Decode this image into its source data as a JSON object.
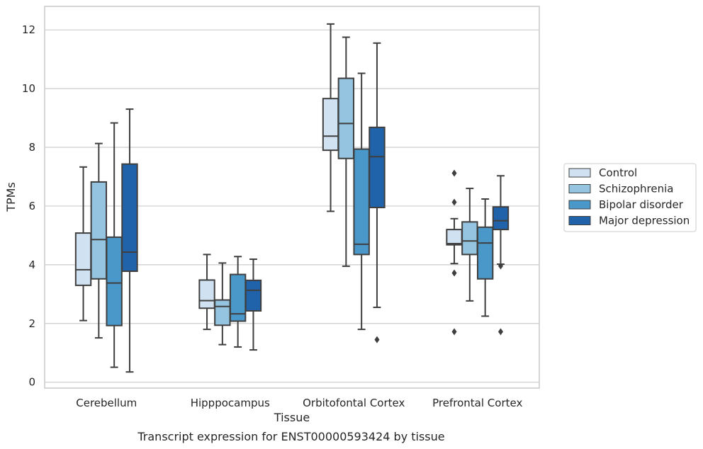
{
  "chart_data": {
    "type": "box",
    "caption": "Transcript expression for ENST00000593424 by tissue",
    "xlabel": "Tissue",
    "ylabel": "TPMs",
    "ylim": [
      -0.2,
      12.8
    ],
    "yticks": [
      0,
      2,
      4,
      6,
      8,
      10,
      12
    ],
    "grid": "horizontal",
    "legend_position": "right",
    "categories": [
      "Cerebellum",
      "Hipppocampus",
      "Orbitofontal Cortex",
      "Prefrontal Cortex"
    ],
    "series": [
      {
        "name": "Control",
        "color": "#d0e1f2",
        "boxes": [
          {
            "whisker_low": 2.1,
            "q1": 3.3,
            "median": 3.83,
            "q3": 5.08,
            "whisker_high": 7.33,
            "outliers": []
          },
          {
            "whisker_low": 1.8,
            "q1": 2.52,
            "median": 2.78,
            "q3": 3.48,
            "whisker_high": 4.35,
            "outliers": []
          },
          {
            "whisker_low": 5.82,
            "q1": 7.9,
            "median": 8.38,
            "q3": 9.66,
            "whisker_high": 12.2,
            "outliers": []
          },
          {
            "whisker_low": 4.04,
            "q1": 4.68,
            "median": 4.72,
            "q3": 5.2,
            "whisker_high": 5.57,
            "outliers": [
              7.12,
              6.13,
              3.72,
              1.72
            ]
          }
        ]
      },
      {
        "name": "Schizophrenia",
        "color": "#94c4df",
        "boxes": [
          {
            "whisker_low": 1.51,
            "q1": 3.52,
            "median": 4.86,
            "q3": 6.82,
            "whisker_high": 8.13,
            "outliers": []
          },
          {
            "whisker_low": 1.28,
            "q1": 1.94,
            "median": 2.58,
            "q3": 2.8,
            "whisker_high": 4.06,
            "outliers": []
          },
          {
            "whisker_low": 3.95,
            "q1": 7.62,
            "median": 8.81,
            "q3": 10.35,
            "whisker_high": 11.75,
            "outliers": []
          },
          {
            "whisker_low": 2.77,
            "q1": 4.35,
            "median": 4.81,
            "q3": 5.46,
            "whisker_high": 6.6,
            "outliers": []
          }
        ]
      },
      {
        "name": "Bipolar disorder",
        "color": "#4a98c9",
        "boxes": [
          {
            "whisker_low": 0.51,
            "q1": 1.93,
            "median": 3.38,
            "q3": 4.94,
            "whisker_high": 8.83,
            "outliers": []
          },
          {
            "whisker_low": 1.2,
            "q1": 2.08,
            "median": 2.33,
            "q3": 3.67,
            "whisker_high": 4.28,
            "outliers": []
          },
          {
            "whisker_low": 1.8,
            "q1": 4.35,
            "median": 4.7,
            "q3": 7.94,
            "whisker_high": 10.52,
            "outliers": []
          },
          {
            "whisker_low": 2.25,
            "q1": 3.52,
            "median": 4.74,
            "q3": 5.28,
            "whisker_high": 6.24,
            "outliers": []
          }
        ]
      },
      {
        "name": "Major depression",
        "color": "#2163aa",
        "boxes": [
          {
            "whisker_low": 0.35,
            "q1": 3.78,
            "median": 4.43,
            "q3": 7.43,
            "whisker_high": 9.3,
            "outliers": []
          },
          {
            "whisker_low": 1.1,
            "q1": 2.43,
            "median": 3.13,
            "q3": 3.47,
            "whisker_high": 4.19,
            "outliers": []
          },
          {
            "whisker_low": 2.55,
            "q1": 5.95,
            "median": 7.68,
            "q3": 8.68,
            "whisker_high": 11.55,
            "outliers": [
              1.45
            ]
          },
          {
            "whisker_low": 4.02,
            "q1": 5.2,
            "median": 5.5,
            "q3": 5.97,
            "whisker_high": 7.03,
            "outliers": [
              3.96,
              1.72
            ]
          }
        ]
      }
    ]
  }
}
